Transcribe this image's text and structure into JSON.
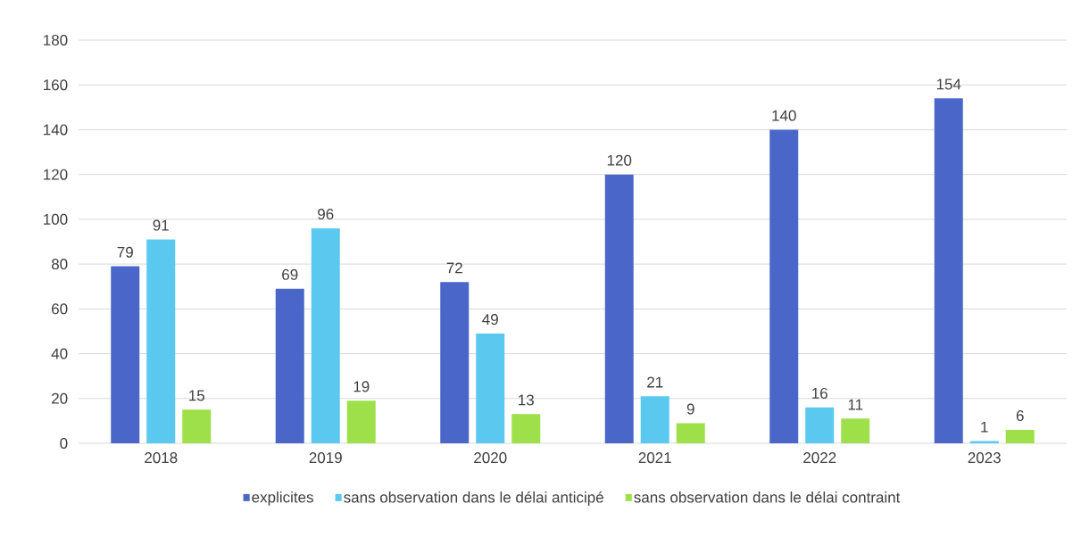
{
  "chart_data": {
    "type": "bar",
    "categories": [
      "2018",
      "2019",
      "2020",
      "2021",
      "2022",
      "2023"
    ],
    "series": [
      {
        "name": "explicites",
        "color": "#4a66c8",
        "values": [
          79,
          69,
          72,
          120,
          140,
          154
        ]
      },
      {
        "name": "sans observation dans le délai anticipé",
        "color": "#5bc8f0",
        "values": [
          91,
          96,
          49,
          21,
          16,
          1
        ]
      },
      {
        "name": "sans observation dans le délai contraint",
        "color": "#9ee04a",
        "values": [
          15,
          19,
          13,
          9,
          11,
          6
        ]
      }
    ],
    "ylim": [
      0,
      180
    ],
    "yticks": [
      0,
      20,
      40,
      60,
      80,
      100,
      120,
      140,
      160,
      180
    ],
    "grid": "y",
    "legend": "bottom",
    "data_labels": true
  }
}
